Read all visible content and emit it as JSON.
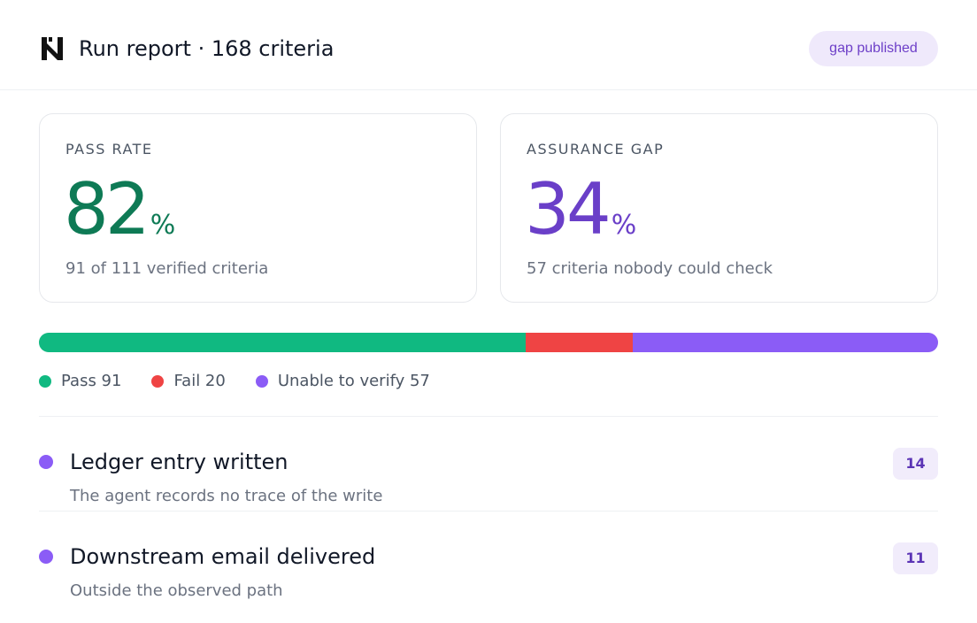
{
  "header": {
    "title": "Run report · 168 criteria",
    "logo_icon": "brand-logo-icon",
    "badge": "gap published"
  },
  "cards": {
    "pass_rate": {
      "label": "PASS RATE",
      "value": "82",
      "unit": "%",
      "sub": "91 of 111 verified criteria",
      "color": "#0e7a55"
    },
    "assurance_gap": {
      "label": "ASSURANCE GAP",
      "value": "34",
      "unit": "%",
      "sub": "57 criteria nobody could check",
      "color": "#6a3fc8"
    }
  },
  "breakdown": {
    "segments": [
      {
        "key": "pass",
        "label": "Pass 91",
        "count": 91,
        "color": "#10b981"
      },
      {
        "key": "fail",
        "label": "Fail 20",
        "count": 20,
        "color": "#ef4444"
      },
      {
        "key": "unverified",
        "label": "Unable to verify 57",
        "count": 57,
        "color": "#8b5cf6"
      }
    ]
  },
  "gaps": [
    {
      "title": "Ledger entry written",
      "description": "The agent records no trace of the write",
      "count": "14"
    },
    {
      "title": "Downstream email delivered",
      "description": "Outside the observed path",
      "count": "11"
    }
  ]
}
